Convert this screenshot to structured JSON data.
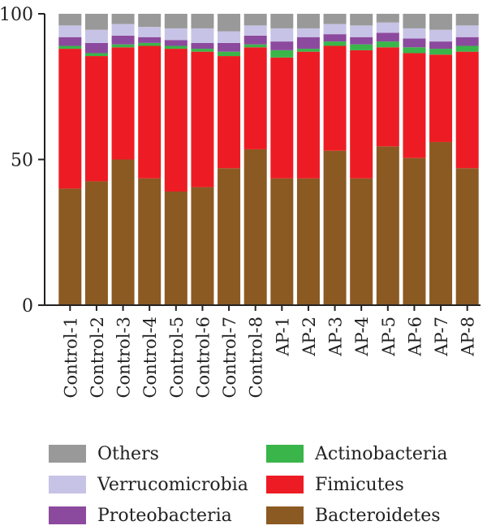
{
  "chart_data": {
    "type": "bar",
    "stacked": true,
    "categories": [
      "Control-1",
      "Control-2",
      "Control-3",
      "Control-4",
      "Control-5",
      "Control-6",
      "Control-7",
      "Control-8",
      "AP-1",
      "AP-2",
      "AP-3",
      "AP-4",
      "AP-5",
      "AP-6",
      "AP-7",
      "AP-8"
    ],
    "ylim": [
      0,
      100
    ],
    "yticks": [
      0,
      50,
      100
    ],
    "series": [
      {
        "name": "Bacteroidetes",
        "color": "#8b5a22",
        "values": [
          40,
          42.5,
          50,
          43.5,
          39,
          40.5,
          47,
          53.5,
          43.5,
          43.5,
          53,
          43.5,
          54.5,
          50.5,
          56,
          47
        ]
      },
      {
        "name": "Fimicutes",
        "color": "#ed1c24",
        "values": [
          48,
          43,
          38.5,
          45.5,
          49,
          46.5,
          38.5,
          35,
          41.5,
          43.5,
          36,
          44,
          34,
          36,
          30,
          40
        ]
      },
      {
        "name": "Actinobacteria",
        "color": "#3ab54a",
        "values": [
          1,
          1,
          1,
          1,
          1,
          1,
          1.5,
          1,
          2.5,
          1,
          1.5,
          2,
          2,
          2,
          2,
          2
        ]
      },
      {
        "name": "Proteobacteria",
        "color": "#8c4a9e",
        "values": [
          3,
          3.5,
          3,
          2,
          2,
          2,
          3,
          3,
          3,
          4,
          2.5,
          2.5,
          3,
          3,
          2.5,
          3
        ]
      },
      {
        "name": "Verrucomicrobia",
        "color": "#c7c3e6",
        "values": [
          4,
          4.5,
          4,
          3.5,
          4,
          5,
          4,
          3.5,
          4.5,
          3,
          3.5,
          4,
          3.5,
          3.5,
          4,
          4
        ]
      },
      {
        "name": "Others",
        "color": "#999999",
        "values": [
          4,
          5.5,
          3.5,
          4.5,
          5,
          5,
          6,
          4,
          5,
          5,
          3.5,
          4,
          3,
          5,
          5.5,
          4
        ]
      }
    ],
    "legend": {
      "placement": "bottom",
      "columns": [
        [
          "Others",
          "Verrucomicrobia",
          "Proteobacteria"
        ],
        [
          "Actinobacteria",
          "Fimicutes",
          "Bacteroidetes"
        ]
      ]
    },
    "title": "",
    "xlabel": "",
    "ylabel": "",
    "grid": false
  }
}
